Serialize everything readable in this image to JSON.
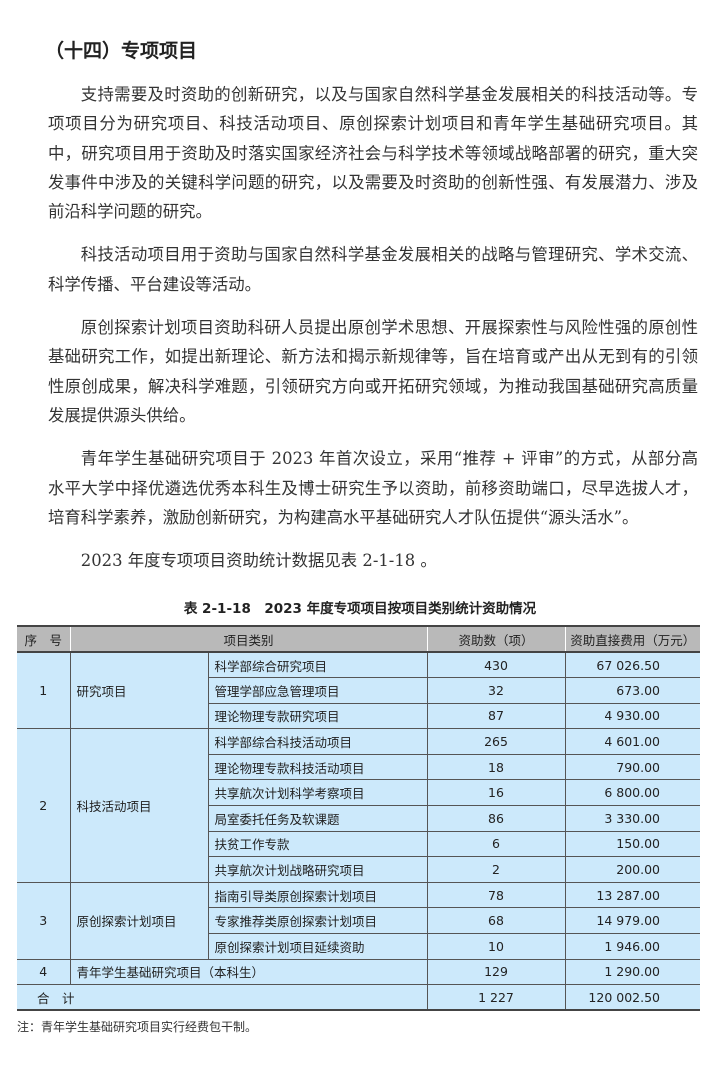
{
  "section_title": "（十四）专项项目",
  "paragraphs": [
    "支持需要及时资助的创新研究，以及与国家自然科学基金发展相关的科技活动等。专项项目分为研究项目、科技活动项目、原创探索计划项目和青年学生基础研究项目。其中，研究项目用于资助及时落实国家经济社会与科学技术等领域战略部署的研究，重大突发事件中涉及的关键科学问题的研究，以及需要及时资助的创新性强、有发展潜力、涉及前沿科学问题的研究。",
    "科技活动项目用于资助与国家自然科学基金发展相关的战略与管理研究、学术交流、科学传播、平台建设等活动。",
    "原创探索计划项目资助科研人员提出原创学术思想、开展探索性与风险性强的原创性基础研究工作，如提出新理论、新方法和揭示新规律等，旨在培育或产出从无到有的引领性原创成果，解决科学难题，引领研究方向或开拓研究领域，为推动我国基础研究高质量发展提供源头供给。",
    "青年学生基础研究项目于 2023 年首次设立，采用“推荐 + 评审”的方式，从部分高水平大学中择优遴选优秀本科生及博士研究生予以资助，前移资助端口，尽早选拔人才，培育科学素养，激励创新研究，为构建高水平基础研究人才队伍提供“源头活水”。",
    "2023 年度专项项目资助统计数据见表 2-1-18 。"
  ],
  "table": {
    "caption": "表 2-1-18　2023 年度专项项目按项目类别统计资助情况",
    "headers": [
      "序　号",
      "项目类别",
      "资助数（项）",
      "资助直接费用（万元）"
    ],
    "groups": [
      {
        "no": "1",
        "name": "研究项目",
        "rows": [
          [
            "科学部综合研究项目",
            "430",
            "67 026.50"
          ],
          [
            "管理学部应急管理项目",
            "32",
            "673.00"
          ],
          [
            "理论物理专款研究项目",
            "87",
            "4 930.00"
          ]
        ]
      },
      {
        "no": "2",
        "name": "科技活动项目",
        "rows": [
          [
            "科学部综合科技活动项目",
            "265",
            "4 601.00"
          ],
          [
            "理论物理专款科技活动项目",
            "18",
            "790.00"
          ],
          [
            "共享航次计划科学考察项目",
            "16",
            "6 800.00"
          ],
          [
            "局室委托任务及软课题",
            "86",
            "3 330.00"
          ],
          [
            "扶贫工作专款",
            "6",
            "150.00"
          ],
          [
            "共享航次计划战略研究项目",
            "2",
            "200.00"
          ]
        ]
      },
      {
        "no": "3",
        "name": "原创探索计划项目",
        "rows": [
          [
            "指南引导类原创探索计划项目",
            "78",
            "13 287.00"
          ],
          [
            "专家推荐类原创探索计划项目",
            "68",
            "14 979.00"
          ],
          [
            "原创探索计划项目延续资助",
            "10",
            "1 946.00"
          ]
        ]
      }
    ],
    "single": {
      "no": "4",
      "name": "青年学生基础研究项目（本科生）",
      "count": "129",
      "cost": "1 290.00"
    },
    "total": {
      "label": "合　计",
      "count": "1 227",
      "cost": "120 002.50"
    },
    "note": "注：青年学生基础研究项目实行经费包干制。"
  }
}
